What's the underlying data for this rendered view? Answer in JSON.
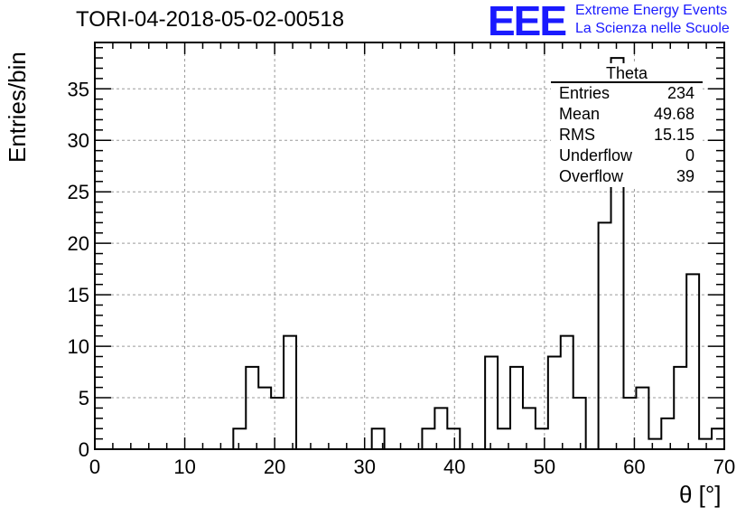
{
  "title": "TORI-04-2018-05-02-00518",
  "logo": {
    "mark": "EEE",
    "line1": "Extreme Energy Events",
    "line2": "La Scienza nelle Scuole",
    "color": "#1a1aff"
  },
  "stats_box": {
    "name": "Theta",
    "rows": [
      {
        "label": "Entries",
        "value": "234"
      },
      {
        "label": "Mean",
        "value": "49.68"
      },
      {
        "label": "RMS",
        "value": "15.15"
      },
      {
        "label": "Underflow",
        "value": "0"
      },
      {
        "label": "Overflow",
        "value": "39"
      }
    ]
  },
  "chart_data": {
    "type": "bar",
    "title": "TORI-04-2018-05-02-00518",
    "xlabel": "θ [°]",
    "ylabel": "Entries/bin",
    "xlim": [
      0,
      70
    ],
    "ylim": [
      0,
      39.5
    ],
    "bin_width": 1.4,
    "x_ticks": [
      0,
      10,
      20,
      30,
      40,
      50,
      60,
      70
    ],
    "y_ticks": [
      0,
      5,
      10,
      15,
      20,
      25,
      30,
      35
    ],
    "grid": true,
    "values": [
      0,
      0,
      0,
      0,
      0,
      0,
      0,
      0,
      0,
      0,
      0,
      2,
      8,
      6,
      5,
      11,
      0,
      0,
      0,
      0,
      0,
      0,
      2,
      0,
      0,
      0,
      2,
      4,
      2,
      0,
      0,
      9,
      2,
      8,
      4,
      2,
      9,
      11,
      5,
      0,
      22,
      38,
      5,
      6,
      1,
      3,
      8,
      17,
      1,
      2
    ]
  }
}
